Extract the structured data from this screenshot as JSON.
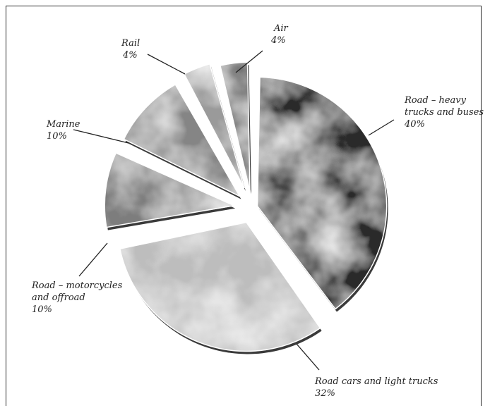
{
  "chart_data": {
    "type": "pie",
    "title": "",
    "exploded": true,
    "slices": [
      {
        "label_lines": [
          "Road – heavy",
          "trucks and buses"
        ],
        "value_text": "40%",
        "value": 40
      },
      {
        "label_lines": [
          "Road cars and light trucks"
        ],
        "value_text": "32%",
        "value": 32
      },
      {
        "label_lines": [
          "Road – motorcycles",
          "and offroad"
        ],
        "value_text": "10%",
        "value": 10
      },
      {
        "label_lines": [
          "Marine"
        ],
        "value_text": "10%",
        "value": 10
      },
      {
        "label_lines": [
          "Rail"
        ],
        "value_text": "4%",
        "value": 4
      },
      {
        "label_lines": [
          "Air"
        ],
        "value_text": "4%",
        "value": 4
      }
    ],
    "colors": [
      "#2b2b2b",
      "#bdbdbd",
      "#7d7d7d",
      "#858585",
      "#9a9a9a",
      "#4a4a4a"
    ]
  }
}
